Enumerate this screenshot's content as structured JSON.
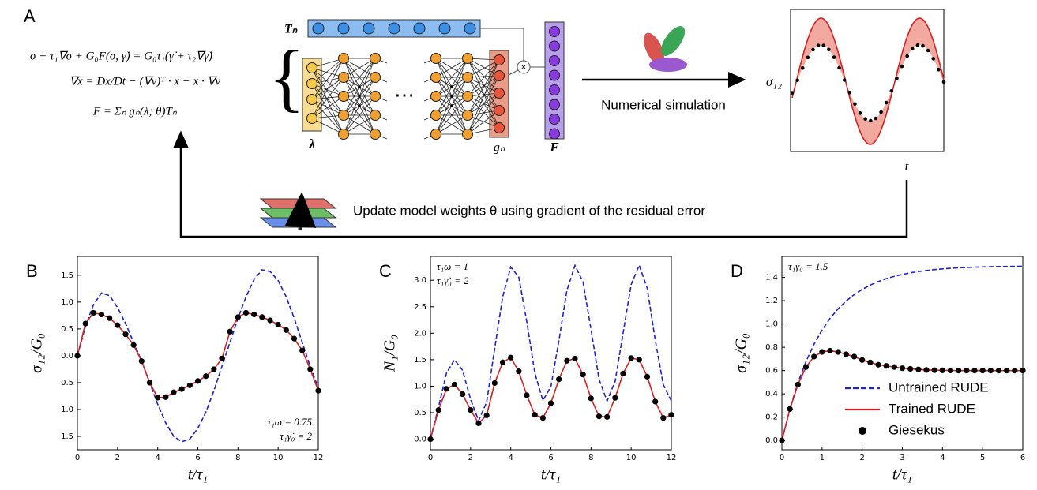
{
  "diagram": {
    "panel": "A",
    "equations": [
      "σ + τ₁∇σ + G₀F(σ, γ̇) = G₀τ₁(γ̇ + τ₂∇γ̇)",
      "∇x = Dx/Dt − (∇v)ᵀ · x − x · ∇v",
      "F = Σₙ gₙ(λ; θ)Tₙ"
    ],
    "tensor_label": "Tₙ",
    "input_label": "λ",
    "output_label": "gₙ",
    "force_label": "F",
    "ellipsis": "⋯",
    "simulation_label": "Numerical simulation",
    "plot_ylabel": "σ₁₂",
    "plot_xlabel": "t",
    "feedback_label": "Update model weights θ using gradient of the residual error"
  },
  "chart_data": [
    {
      "type": "line",
      "panel": "B",
      "xlabel": "t/τ₁",
      "ylabel": "σ₁₂/G₀",
      "annotations": [
        "τ₁ω = 0.75",
        "τ₁γ̇₀ = 2"
      ],
      "annotation_corner": "lower right",
      "xlim": [
        0,
        12
      ],
      "xticks": [
        0,
        2,
        4,
        6,
        8,
        10,
        12
      ],
      "ylim": [
        -1.75,
        1.85
      ],
      "yticks": [
        {
          "value": -1.5,
          "label": "1.5"
        },
        {
          "value": -1.0,
          "label": "1.0"
        },
        {
          "value": -0.5,
          "label": "0.5"
        },
        {
          "value": 0,
          "label": "0.0"
        },
        0.5,
        {
          "value": 1.0,
          "label": "1.0"
        },
        1.5
      ],
      "x": [
        0,
        0.4,
        0.8,
        1.2,
        1.6,
        2.0,
        2.4,
        2.8,
        3.2,
        3.6,
        4.0,
        4.4,
        4.8,
        5.2,
        5.6,
        6.0,
        6.4,
        6.8,
        7.2,
        7.6,
        8.0,
        8.4,
        8.8,
        9.2,
        9.6,
        10.0,
        10.4,
        10.8,
        11.2,
        11.6,
        12.0
      ],
      "series": [
        {
          "kind": "dashed",
          "color": "#1f1fd6",
          "values": [
            0,
            0.55,
            0.95,
            1.17,
            1.12,
            0.9,
            0.6,
            0.25,
            -0.1,
            -0.5,
            -0.9,
            -1.25,
            -1.5,
            -1.6,
            -1.55,
            -1.35,
            -1.05,
            -0.65,
            -0.2,
            0.25,
            0.7,
            1.1,
            1.42,
            1.6,
            1.57,
            1.4,
            1.1,
            0.7,
            0.25,
            -0.2,
            -0.6
          ]
        },
        {
          "kind": "line",
          "color": "#d62020",
          "values": [
            0,
            0.6,
            0.8,
            0.77,
            0.7,
            0.57,
            0.4,
            0.2,
            -0.1,
            -0.5,
            -0.78,
            -0.77,
            -0.68,
            -0.62,
            -0.55,
            -0.47,
            -0.38,
            -0.25,
            -0.05,
            0.45,
            0.72,
            0.8,
            0.77,
            0.72,
            0.66,
            0.58,
            0.48,
            0.32,
            0.1,
            -0.25,
            -0.65
          ]
        },
        {
          "kind": "dots",
          "color": "#000000",
          "values": [
            0,
            0.6,
            0.8,
            0.77,
            0.7,
            0.57,
            0.4,
            0.2,
            -0.1,
            -0.5,
            -0.78,
            -0.77,
            -0.68,
            -0.62,
            -0.55,
            -0.47,
            -0.38,
            -0.25,
            -0.05,
            0.45,
            0.72,
            0.8,
            0.77,
            0.72,
            0.66,
            0.58,
            0.48,
            0.32,
            0.1,
            -0.25,
            -0.65
          ]
        }
      ]
    },
    {
      "type": "line",
      "panel": "C",
      "xlabel": "t/τ₁",
      "ylabel": "N₁/G₀",
      "annotations": [
        "τ₁ω = 1",
        "τ₁γ̇₀ = 2"
      ],
      "annotation_corner": "upper left",
      "xlim": [
        0,
        12
      ],
      "xticks": [
        0,
        2,
        4,
        6,
        8,
        10,
        12
      ],
      "ylim": [
        -0.2,
        3.45
      ],
      "yticks": [
        {
          "value": 0,
          "label": "0.0"
        },
        0.5,
        {
          "value": 1.0,
          "label": "1.0"
        },
        1.5,
        {
          "value": 2.0,
          "label": "2.0"
        },
        2.5,
        {
          "value": 3.0,
          "label": "3.0"
        }
      ],
      "x": [
        0,
        0.4,
        0.8,
        1.2,
        1.6,
        2.0,
        2.4,
        2.8,
        3.2,
        3.6,
        4.0,
        4.4,
        4.8,
        5.2,
        5.6,
        6.0,
        6.4,
        6.8,
        7.2,
        7.6,
        8.0,
        8.4,
        8.8,
        9.2,
        9.6,
        10.0,
        10.4,
        10.8,
        11.2,
        11.6,
        12.0
      ],
      "series": [
        {
          "kind": "dashed",
          "color": "#1f1fd6",
          "values": [
            0,
            0.6,
            1.25,
            1.5,
            1.3,
            0.75,
            0.35,
            0.7,
            1.71,
            2.69,
            3.25,
            3.06,
            2.22,
            1.25,
            0.73,
            0.99,
            1.86,
            2.81,
            3.28,
            2.97,
            2.07,
            1.13,
            0.72,
            1.09,
            2.01,
            2.92,
            3.28,
            2.85,
            1.87,
            1.03,
            0.72
          ]
        },
        {
          "kind": "line",
          "color": "#d62020",
          "values": [
            0,
            0.55,
            0.95,
            1.03,
            0.85,
            0.55,
            0.3,
            0.45,
            1.06,
            1.45,
            1.54,
            1.28,
            0.83,
            0.46,
            0.4,
            0.68,
            1.13,
            1.48,
            1.52,
            1.22,
            0.77,
            0.43,
            0.42,
            0.78,
            1.24,
            1.53,
            1.5,
            1.18,
            0.71,
            0.4,
            0.46
          ]
        },
        {
          "kind": "dots",
          "color": "#000000",
          "values": [
            0,
            0.55,
            0.95,
            1.03,
            0.85,
            0.55,
            0.3,
            0.45,
            1.06,
            1.45,
            1.54,
            1.28,
            0.83,
            0.46,
            0.4,
            0.68,
            1.13,
            1.48,
            1.52,
            1.22,
            0.77,
            0.43,
            0.42,
            0.78,
            1.24,
            1.53,
            1.5,
            1.18,
            0.71,
            0.4,
            0.46
          ]
        }
      ]
    },
    {
      "type": "line",
      "panel": "D",
      "xlabel": "t/τ₁",
      "ylabel": "σ₁₂/G₀",
      "annotations": [
        "τ₁γ̇₀ = 1.5"
      ],
      "annotation_corner": "upper left",
      "legend": "lower right",
      "xlim": [
        0,
        6
      ],
      "xticks": [
        0,
        1,
        2,
        3,
        4,
        5,
        6
      ],
      "ylim": [
        -0.08,
        1.58
      ],
      "yticks": [
        {
          "value": 0,
          "label": "0.0"
        },
        0.2,
        0.4,
        0.6,
        0.8,
        {
          "value": 1.0,
          "label": "1.0"
        },
        1.2,
        1.4
      ],
      "x": [
        0,
        0.2,
        0.4,
        0.6,
        0.8,
        1.0,
        1.2,
        1.4,
        1.6,
        1.8,
        2.0,
        2.2,
        2.4,
        2.6,
        2.8,
        3.0,
        3.2,
        3.4,
        3.6,
        3.8,
        4.0,
        4.2,
        4.4,
        4.6,
        4.8,
        5.0,
        5.2,
        5.4,
        5.6,
        5.8,
        6.0
      ],
      "series": [
        {
          "name": "Untrained RUDE",
          "kind": "dashed",
          "color": "#1f1fd6",
          "values": [
            0,
            0.272,
            0.495,
            0.677,
            0.826,
            0.948,
            1.048,
            1.13,
            1.197,
            1.252,
            1.297,
            1.334,
            1.364,
            1.389,
            1.409,
            1.425,
            1.439,
            1.45,
            1.459,
            1.467,
            1.473,
            1.478,
            1.482,
            1.485,
            1.488,
            1.49,
            1.492,
            1.493,
            1.494,
            1.495,
            1.496
          ]
        },
        {
          "name": "Trained RUDE",
          "kind": "line",
          "color": "#d62020",
          "values": [
            0,
            0.27,
            0.48,
            0.63,
            0.72,
            0.76,
            0.77,
            0.76,
            0.74,
            0.72,
            0.69,
            0.67,
            0.65,
            0.64,
            0.63,
            0.62,
            0.615,
            0.61,
            0.605,
            0.603,
            0.602,
            0.601,
            0.6,
            0.6,
            0.6,
            0.6,
            0.6,
            0.6,
            0.6,
            0.6,
            0.6
          ]
        },
        {
          "name": "Giesekus",
          "kind": "dots",
          "color": "#000000",
          "values": [
            0,
            0.27,
            0.48,
            0.63,
            0.72,
            0.76,
            0.77,
            0.76,
            0.74,
            0.72,
            0.69,
            0.67,
            0.65,
            0.64,
            0.63,
            0.62,
            0.615,
            0.61,
            0.605,
            0.603,
            0.602,
            0.601,
            0.6,
            0.6,
            0.6,
            0.6,
            0.6,
            0.6,
            0.6,
            0.6,
            0.6
          ]
        }
      ]
    }
  ]
}
